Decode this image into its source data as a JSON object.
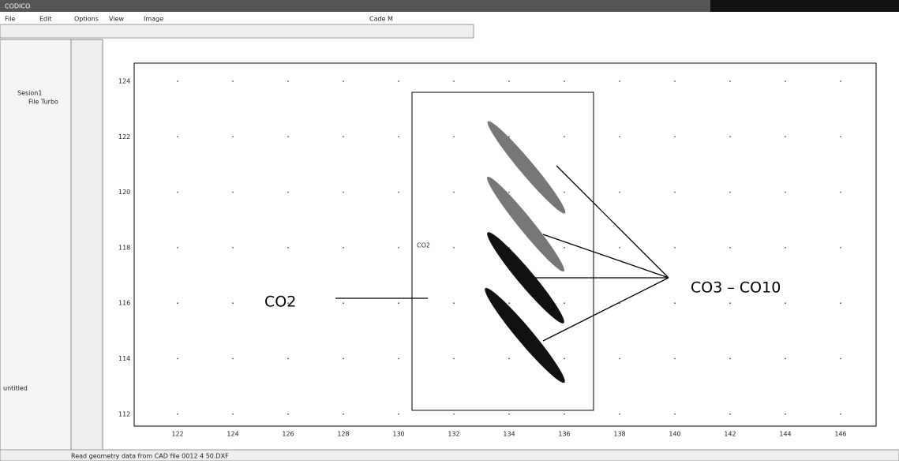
{
  "window": {
    "title": "CODICO",
    "menu": [
      "File",
      "Edit",
      "Options",
      "View",
      "Image"
    ],
    "doc_name": "Cade M"
  },
  "sidebar": {
    "tree": [
      "Sesion1",
      "File Turbo"
    ],
    "file": "untitled"
  },
  "plot": {
    "y_ticks": [
      "124",
      "122",
      "120",
      "118",
      "116",
      "114",
      "112"
    ],
    "x_ticks": [
      "122",
      "124",
      "126",
      "128",
      "130",
      "132",
      "134",
      "136",
      "138",
      "140",
      "142",
      "144",
      "146"
    ],
    "box_label": "CO2"
  },
  "annotations": {
    "left": "CO2",
    "right": "CO3 – CO10"
  },
  "status": "Read geometry data from CAD file 0012 4 50.DXF"
}
